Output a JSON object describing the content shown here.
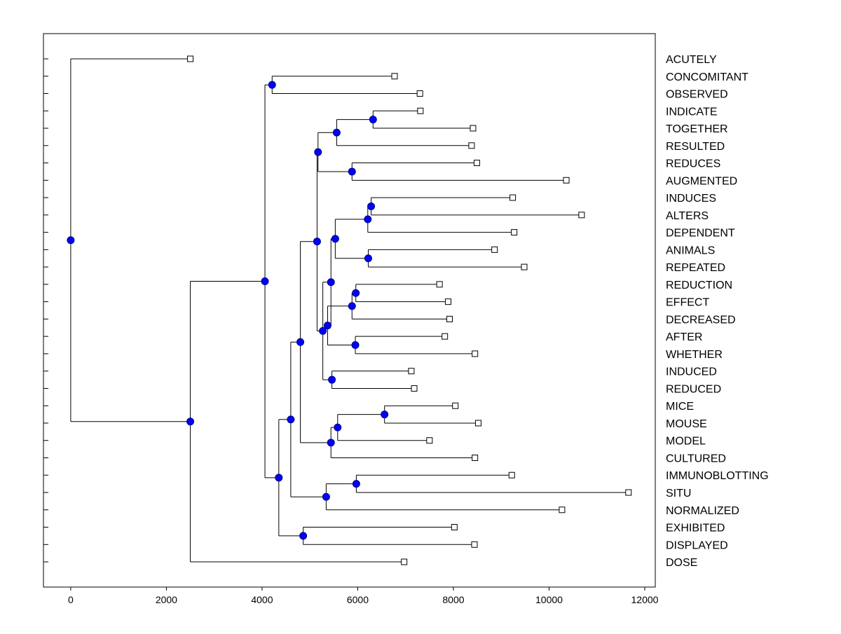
{
  "chart_data": {
    "type": "dendrogram",
    "orientation": "horizontal",
    "xlim": [
      -570,
      12220
    ],
    "x_ticks": [
      "0",
      "2000",
      "4000",
      "6000",
      "8000",
      "10000",
      "12000"
    ],
    "x_tick_values": [
      0,
      2000,
      4000,
      6000,
      8000,
      10000,
      12000
    ],
    "grid": false,
    "leaves": [
      {
        "label": "ACUTELY",
        "value": 2500
      },
      {
        "label": "CONCOMITANT",
        "value": 6770
      },
      {
        "label": "OBSERVED",
        "value": 7300
      },
      {
        "label": "INDICATE",
        "value": 7310
      },
      {
        "label": "TOGETHER",
        "value": 8410
      },
      {
        "label": "RESULTED",
        "value": 8380
      },
      {
        "label": "REDUCES",
        "value": 8490
      },
      {
        "label": "AUGMENTED",
        "value": 10360
      },
      {
        "label": "INDUCES",
        "value": 9240
      },
      {
        "label": "ALTERS",
        "value": 10680
      },
      {
        "label": "DEPENDENT",
        "value": 9270
      },
      {
        "label": "ANIMALS",
        "value": 8860
      },
      {
        "label": "REPEATED",
        "value": 9480
      },
      {
        "label": "REDUCTION",
        "value": 7710
      },
      {
        "label": "EFFECT",
        "value": 7890
      },
      {
        "label": "DECREASED",
        "value": 7920
      },
      {
        "label": "AFTER",
        "value": 7820
      },
      {
        "label": "WHETHER",
        "value": 8450
      },
      {
        "label": "INDUCED",
        "value": 7120
      },
      {
        "label": "REDUCED",
        "value": 7180
      },
      {
        "label": "MICE",
        "value": 8040
      },
      {
        "label": "MOUSE",
        "value": 8520
      },
      {
        "label": "MODEL",
        "value": 7500
      },
      {
        "label": "CULTURED",
        "value": 8450
      },
      {
        "label": "IMMUNOBLOTTING",
        "value": 9220
      },
      {
        "label": "SITU",
        "value": 11660
      },
      {
        "label": "NORMALIZED",
        "value": 10270
      },
      {
        "label": "EXHIBITED",
        "value": 8020
      },
      {
        "label": "DISPLAYED",
        "value": 8440
      },
      {
        "label": "DOSE",
        "value": 6970
      }
    ],
    "merges": [
      {
        "id": "n_concom_obs",
        "value": 4210,
        "children": [
          "CONCOMITANT",
          "OBSERVED"
        ]
      },
      {
        "id": "n_ind_tog",
        "value": 6320,
        "children": [
          "INDICATE",
          "TOGETHER"
        ]
      },
      {
        "id": "n_ind_tog_res",
        "value": 5560,
        "children": [
          "n_ind_tog",
          "RESULTED"
        ]
      },
      {
        "id": "n_red_aug",
        "value": 5880,
        "children": [
          "REDUCES",
          "AUGMENTED"
        ]
      },
      {
        "id": "n_group_a",
        "value": 5170,
        "children": [
          "n_ind_tog_res",
          "n_red_aug"
        ]
      },
      {
        "id": "n_induces_alters",
        "value": 6280,
        "children": [
          "INDUCES",
          "ALTERS"
        ]
      },
      {
        "id": "n_ia_dep",
        "value": 6210,
        "children": [
          "n_induces_alters",
          "DEPENDENT"
        ]
      },
      {
        "id": "n_ani_rep",
        "value": 6220,
        "children": [
          "ANIMALS",
          "REPEATED"
        ]
      },
      {
        "id": "n_group_b",
        "value": 5530,
        "children": [
          "n_ia_dep",
          "n_ani_rep"
        ]
      },
      {
        "id": "n_redn_eff",
        "value": 5960,
        "children": [
          "REDUCTION",
          "EFFECT"
        ]
      },
      {
        "id": "n_re_dec",
        "value": 5880,
        "children": [
          "n_redn_eff",
          "DECREASED"
        ]
      },
      {
        "id": "n_aft_whe",
        "value": 5950,
        "children": [
          "AFTER",
          "WHETHER"
        ]
      },
      {
        "id": "n_red_group",
        "value": 5370,
        "children": [
          "n_re_dec",
          "n_aft_whe"
        ]
      },
      {
        "id": "n_group_c",
        "value": 5440,
        "children": [
          "n_group_b",
          "n_red_group"
        ]
      },
      {
        "id": "n_ind_redd",
        "value": 5460,
        "children": [
          "INDUCED",
          "REDUCED"
        ]
      },
      {
        "id": "n_c_indred",
        "value": 5270,
        "children": [
          "n_group_c",
          "n_ind_redd"
        ]
      },
      {
        "id": "n_ab",
        "value": 5150,
        "children": [
          "n_group_a",
          "n_c_indred"
        ]
      },
      {
        "id": "n_mice_mouse",
        "value": 6560,
        "children": [
          "MICE",
          "MOUSE"
        ]
      },
      {
        "id": "n_mm_model",
        "value": 5580,
        "children": [
          "n_mice_mouse",
          "MODEL"
        ]
      },
      {
        "id": "n_mmm_cult",
        "value": 5440,
        "children": [
          "n_mm_model",
          "CULTURED"
        ]
      },
      {
        "id": "n_big_upper",
        "value": 4800,
        "children": [
          "n_ab",
          "n_mmm_cult"
        ]
      },
      {
        "id": "n_imm_situ",
        "value": 5970,
        "children": [
          "IMMUNOBLOTTING",
          "SITU"
        ]
      },
      {
        "id": "n_is_norm",
        "value": 5340,
        "children": [
          "n_imm_situ",
          "NORMALIZED"
        ]
      },
      {
        "id": "n_upper_is",
        "value": 4600,
        "children": [
          "n_big_upper",
          "n_is_norm"
        ]
      },
      {
        "id": "n_exh_disp",
        "value": 4860,
        "children": [
          "EXHIBITED",
          "DISPLAYED"
        ]
      },
      {
        "id": "n_upper_ed",
        "value": 4350,
        "children": [
          "n_upper_is",
          "n_exh_disp"
        ]
      },
      {
        "id": "n_main",
        "value": 4060,
        "children": [
          "n_concom_obs",
          "n_upper_ed"
        ]
      },
      {
        "id": "n_main_dose",
        "value": 2500,
        "children": [
          "n_main",
          "DOSE"
        ]
      },
      {
        "id": "n_root",
        "value": 0,
        "children": [
          "ACUTELY",
          "n_main_dose"
        ]
      }
    ],
    "colors": {
      "node_fill": "#0000ff",
      "node_stroke": "#000080",
      "leaf_fill": "#ffffff",
      "line": "#000000"
    }
  }
}
